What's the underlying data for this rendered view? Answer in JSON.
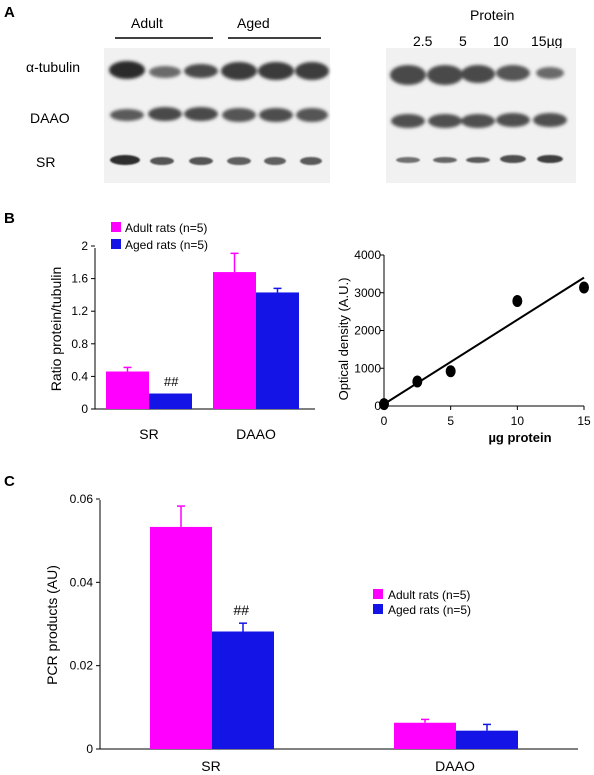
{
  "panels": {
    "a": {
      "letter": "A",
      "groups": [
        "Adult",
        "Aged"
      ],
      "protein_header": "Protein",
      "protein_amounts": [
        "2.5",
        "5",
        "10",
        "15µg"
      ],
      "rows": [
        "α-tubulin",
        "DAAO",
        "SR"
      ]
    },
    "b": {
      "letter": "B"
    },
    "c": {
      "letter": "C"
    }
  },
  "chart_data": [
    {
      "type": "bar",
      "panel": "B",
      "categories": [
        "SR",
        "DAAO"
      ],
      "series": [
        {
          "name": "Adult rats (n=5)",
          "color": "#ff00ff",
          "values": [
            0.46,
            1.68
          ],
          "errors": [
            0.05,
            0.23
          ]
        },
        {
          "name": "Aged rats (n=5)",
          "color": "#1414e6",
          "values": [
            0.19,
            1.43
          ],
          "errors": [
            0.0,
            0.05
          ]
        }
      ],
      "annotations": [
        "##"
      ],
      "ylabel": "Ratio protein/tubulin",
      "ylim": [
        0,
        2
      ],
      "yticks": [
        "0",
        "0.4",
        "0.8",
        "1.2",
        "1.6",
        "2"
      ],
      "legend": "top-left",
      "grid": false
    },
    {
      "type": "scatter",
      "panel": "B",
      "x": [
        0,
        2.5,
        5,
        10,
        15
      ],
      "y": [
        50,
        650,
        920,
        2780,
        3140
      ],
      "fit": {
        "x": [
          0,
          15
        ],
        "y": [
          50,
          3400
        ]
      },
      "xlabel": "µg protein",
      "ylabel": "Optical density  (A.U.)",
      "xlim": [
        0,
        15
      ],
      "ylim": [
        0,
        4000
      ],
      "xticks": [
        "0",
        "5",
        "10",
        "15"
      ],
      "yticks": [
        "0",
        "1000",
        "2000",
        "3000",
        "4000"
      ],
      "grid": false
    },
    {
      "type": "bar",
      "panel": "C",
      "categories": [
        "SR",
        "DAAO"
      ],
      "series": [
        {
          "name": "Adult rats (n=5)",
          "color": "#ff00ff",
          "values": [
            0.0533,
            0.0063
          ],
          "errors": [
            0.005,
            0.0008
          ]
        },
        {
          "name": "Aged rats (n=5)",
          "color": "#1414e6",
          "values": [
            0.0282,
            0.0044
          ],
          "errors": [
            0.002,
            0.0015
          ]
        }
      ],
      "annotations": [
        "##"
      ],
      "ylabel": "PCR products (AU)",
      "ylim": [
        0,
        0.06
      ],
      "yticks": [
        "0",
        "0.02",
        "0.04",
        "0.06"
      ],
      "legend": "center-right",
      "grid": false
    }
  ]
}
